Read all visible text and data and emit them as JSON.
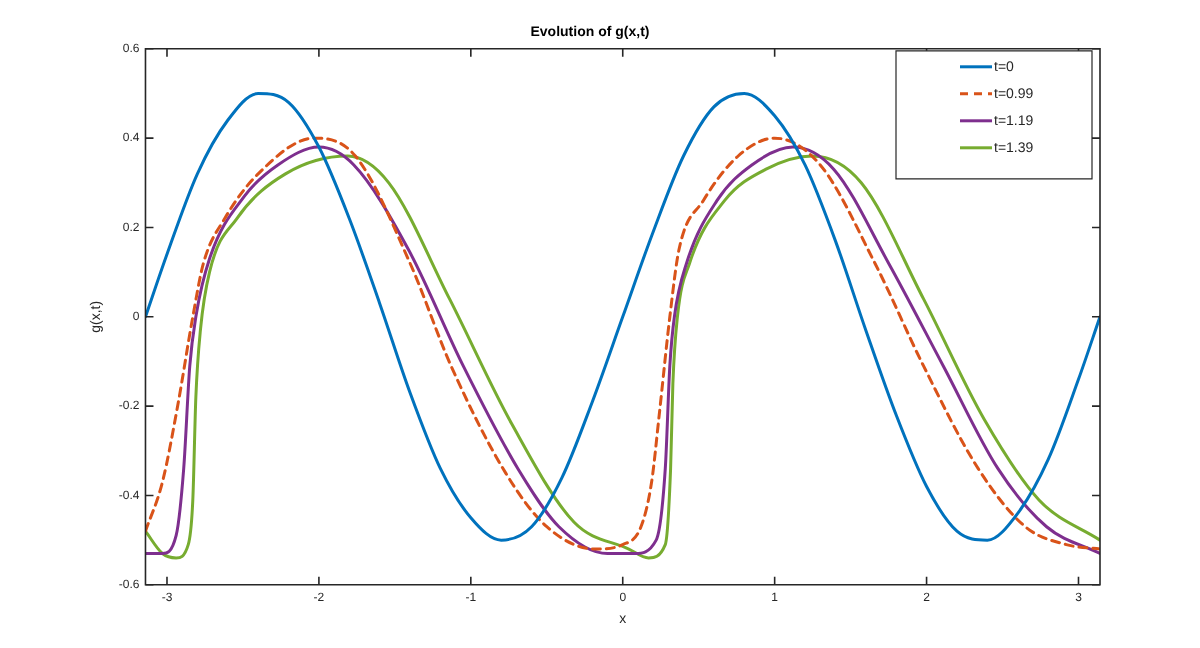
{
  "chart_data": {
    "type": "line",
    "title": "Evolution of g(x,t)",
    "xlabel": "x",
    "ylabel": "g(x,t)",
    "xlim": [
      -3.14159,
      3.14159
    ],
    "xticks": [
      -3,
      -2,
      -1,
      0,
      1,
      2,
      3
    ],
    "ylim": [
      -0.6,
      0.6
    ],
    "yticks": [
      -0.6,
      -0.4,
      -0.2,
      0,
      0.2,
      0.4,
      0.6
    ],
    "grid": false,
    "legend": "top right",
    "marker": "none",
    "series": [
      {
        "name": "t=0",
        "color": "#0072bd",
        "line_style": "solid",
        "x": [
          -3.14159,
          -3.0,
          -2.8,
          -2.6,
          -2.4,
          -2.2,
          -2.0,
          -1.8,
          -1.6,
          -1.4,
          -1.2,
          -1.0,
          -0.8,
          -0.6,
          -0.4,
          -0.2,
          0,
          0.2,
          0.4,
          0.6,
          0.8,
          1.0,
          1.2,
          1.4,
          1.6,
          1.8,
          2.0,
          2.2,
          2.4,
          2.6,
          2.8,
          3.0,
          3.14159
        ],
        "values": [
          0,
          0.14,
          0.32,
          0.44,
          0.5,
          0.48,
          0.38,
          0.22,
          0.03,
          -0.17,
          -0.34,
          -0.45,
          -0.5,
          -0.47,
          -0.36,
          -0.19,
          0,
          0.19,
          0.36,
          0.47,
          0.5,
          0.45,
          0.34,
          0.17,
          -0.03,
          -0.22,
          -0.38,
          -0.48,
          -0.5,
          -0.44,
          -0.32,
          -0.14,
          0
        ]
      },
      {
        "name": "t=0.99",
        "color": "#d95319",
        "line_style": "dashed",
        "x": [
          -3.14159,
          -3.03,
          -2.93,
          -2.83,
          -2.76,
          -2.62,
          -2.4,
          -2.03,
          -1.76,
          -1.4,
          -1.13,
          -0.77,
          -0.5,
          -0.18,
          0,
          0.12,
          0.19,
          0.24,
          0.31,
          0.37,
          0.53,
          0.76,
          1.0,
          1.3,
          1.66,
          1.98,
          2.34,
          2.65,
          2.92,
          3.14159
        ],
        "values": [
          -0.48,
          -0.37,
          -0.2,
          0,
          0.12,
          0.22,
          0.32,
          0.4,
          0.36,
          0.12,
          -0.11,
          -0.35,
          -0.47,
          -0.52,
          -0.51,
          -0.47,
          -0.37,
          -0.22,
          0,
          0.15,
          0.26,
          0.36,
          0.4,
          0.34,
          0.12,
          -0.11,
          -0.34,
          -0.47,
          -0.51,
          -0.52
        ]
      },
      {
        "name": "t=1.19",
        "color": "#7e2f8e",
        "line_style": "solid",
        "x": [
          -3.14159,
          -3.03,
          -2.94,
          -2.89,
          -2.85,
          -2.81,
          -2.72,
          -2.49,
          -2.27,
          -2.0,
          -1.77,
          -1.41,
          -1.05,
          -0.69,
          -0.42,
          -0.1,
          0.08,
          0.22,
          0.28,
          0.31,
          0.34,
          0.42,
          0.62,
          0.85,
          1.12,
          1.39,
          1.75,
          2.11,
          2.47,
          2.79,
          3.14159
        ],
        "values": [
          -0.53,
          -0.53,
          -0.49,
          -0.34,
          -0.11,
          0,
          0.13,
          0.27,
          0.34,
          0.38,
          0.34,
          0.15,
          -0.11,
          -0.34,
          -0.47,
          -0.53,
          -0.53,
          -0.5,
          -0.34,
          -0.11,
          0,
          0.12,
          0.26,
          0.34,
          0.38,
          0.33,
          0.12,
          -0.11,
          -0.34,
          -0.47,
          -0.53
        ]
      },
      {
        "name": "t=1.39",
        "color": "#77ac30",
        "line_style": "solid",
        "x": [
          -3.14159,
          -3.03,
          -2.94,
          -2.86,
          -2.83,
          -2.81,
          -2.78,
          -2.72,
          -2.54,
          -2.22,
          -1.81,
          -1.54,
          -1.14,
          -0.73,
          -0.32,
          0.04,
          0.17,
          0.28,
          0.315,
          0.33,
          0.36,
          0.44,
          0.67,
          0.94,
          1.25,
          1.57,
          1.98,
          2.38,
          2.74,
          3.14159
        ],
        "values": [
          -0.48,
          -0.53,
          -0.54,
          -0.51,
          -0.41,
          -0.18,
          -0.03,
          0.1,
          0.22,
          0.32,
          0.36,
          0.3,
          0.04,
          -0.24,
          -0.46,
          -0.52,
          -0.54,
          -0.51,
          -0.34,
          -0.15,
          0,
          0.12,
          0.26,
          0.33,
          0.36,
          0.3,
          0.04,
          -0.23,
          -0.41,
          -0.5
        ]
      }
    ]
  }
}
